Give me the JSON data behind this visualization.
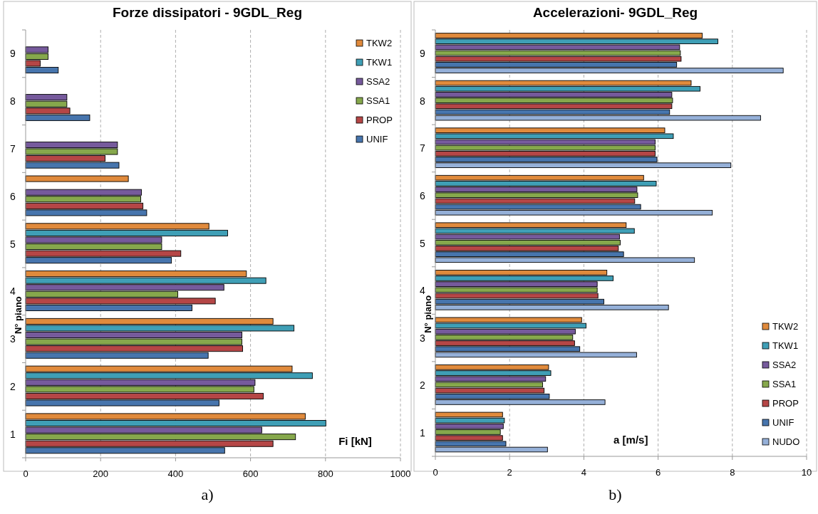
{
  "chart_data": [
    {
      "type": "bar",
      "orientation": "horizontal",
      "title": "Forze dissipatori - 9GDL_Reg",
      "xlabel": "Fi [kN]",
      "ylabel": "N° piano",
      "categories": [
        "9",
        "8",
        "7",
        "6",
        "5",
        "4",
        "3",
        "2",
        "1"
      ],
      "xlim": [
        0,
        1000
      ],
      "xticks": [
        0,
        200,
        400,
        600,
        800,
        1000
      ],
      "grid": "x",
      "legend": "top right",
      "annotations": [
        "a)"
      ],
      "series": [
        {
          "name": "TKW2",
          "color": "#e08a3c",
          "values": [
            null,
            null,
            null,
            274,
            489,
            589,
            660,
            711,
            746
          ]
        },
        {
          "name": "TKW1",
          "color": "#3f9fb6",
          "values": [
            null,
            null,
            null,
            null,
            539,
            641,
            716,
            765,
            801
          ]
        },
        {
          "name": "SSA2",
          "color": "#765a9c",
          "values": [
            60,
            110,
            245,
            309,
            363,
            529,
            577,
            612,
            630
          ]
        },
        {
          "name": "SSA1",
          "color": "#86a84c",
          "values": [
            60,
            110,
            245,
            307,
            363,
            406,
            577,
            609,
            720
          ]
        },
        {
          "name": "PROP",
          "color": "#b54646",
          "values": [
            39,
            118,
            212,
            313,
            414,
            506,
            579,
            634,
            660
          ]
        },
        {
          "name": "UNIF",
          "color": "#4775ad",
          "values": [
            87,
            171,
            249,
            323,
            389,
            444,
            487,
            516,
            531
          ]
        }
      ]
    },
    {
      "type": "bar",
      "orientation": "horizontal",
      "title": "Accelerazioni- 9GDL_Reg",
      "xlabel": "a [m/s]",
      "ylabel": "N° piano",
      "categories": [
        "9",
        "8",
        "7",
        "6",
        "5",
        "4",
        "3",
        "2",
        "1"
      ],
      "xlim": [
        0,
        10
      ],
      "xticks": [
        0,
        2,
        4,
        6,
        8,
        10
      ],
      "grid": "x",
      "legend": "bottom right",
      "annotations": [
        "b)"
      ],
      "series": [
        {
          "name": "TKW2",
          "color": "#e08a3c",
          "values": [
            7.19,
            6.89,
            6.18,
            5.61,
            5.14,
            4.62,
            3.94,
            3.05,
            1.81
          ]
        },
        {
          "name": "TKW1",
          "color": "#3f9fb6",
          "values": [
            7.61,
            7.13,
            6.41,
            5.95,
            5.36,
            4.79,
            4.06,
            3.11,
            1.86
          ]
        },
        {
          "name": "SSA2",
          "color": "#765a9c",
          "values": [
            6.58,
            6.37,
            5.92,
            5.43,
            4.96,
            4.36,
            3.77,
            2.97,
            1.83
          ]
        },
        {
          "name": "SSA1",
          "color": "#86a84c",
          "values": [
            6.6,
            6.39,
            5.92,
            5.45,
            4.98,
            4.36,
            3.7,
            2.89,
            1.75
          ]
        },
        {
          "name": "PROP",
          "color": "#b54646",
          "values": [
            6.62,
            6.37,
            5.92,
            5.37,
            4.93,
            4.38,
            3.75,
            2.93,
            1.81
          ]
        },
        {
          "name": "UNIF",
          "color": "#4775ad",
          "values": [
            6.5,
            6.31,
            5.97,
            5.53,
            5.07,
            4.54,
            3.89,
            3.07,
            1.9
          ]
        },
        {
          "name": "NUDO",
          "color": "#95b0d8",
          "values": [
            9.37,
            8.76,
            7.96,
            7.46,
            6.98,
            6.28,
            5.42,
            4.57,
            3.02
          ]
        }
      ]
    }
  ]
}
